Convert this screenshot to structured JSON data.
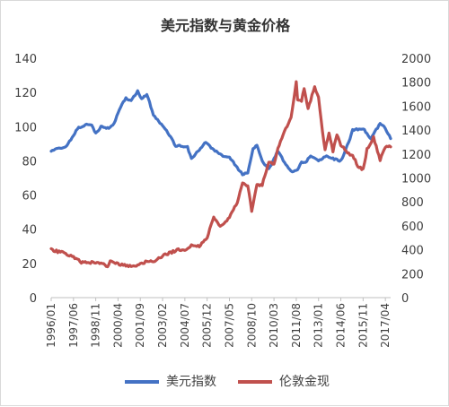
{
  "chart_data": {
    "type": "line",
    "title": "美元指数与黄金价格",
    "xlabel": "",
    "ylabel": "",
    "x_categories": [
      "1996/01",
      "1997/06",
      "1998/11",
      "2000/04",
      "2001/09",
      "2003/02",
      "2004/07",
      "2005/12",
      "2007/05",
      "2008/10",
      "2010/03",
      "2011/08",
      "2013/01",
      "2014/06",
      "2015/11",
      "2017/04"
    ],
    "x_range": [
      "1996/01",
      "2017/08"
    ],
    "y_left": {
      "min": 0,
      "max": 140,
      "ticks": [
        0,
        20,
        40,
        60,
        80,
        100,
        120,
        140
      ]
    },
    "y_right": {
      "min": 0,
      "max": 2000,
      "ticks": [
        0,
        200,
        400,
        600,
        800,
        1000,
        1200,
        1400,
        1600,
        1800,
        2000
      ]
    },
    "grid": false,
    "legend_position": "bottom",
    "series": [
      {
        "name": "美元指数",
        "axis": "left",
        "color": "#4472c4",
        "points": [
          [
            "1996/01",
            86
          ],
          [
            "1996/06",
            87
          ],
          [
            "1996/12",
            88
          ],
          [
            "1997/06",
            95
          ],
          [
            "1997/09",
            99
          ],
          [
            "1997/12",
            100
          ],
          [
            "1998/03",
            101
          ],
          [
            "1998/08",
            101
          ],
          [
            "1998/11",
            96
          ],
          [
            "1999/03",
            100
          ],
          [
            "1999/09",
            99
          ],
          [
            "2000/01",
            102
          ],
          [
            "2000/05",
            110
          ],
          [
            "2000/10",
            117
          ],
          [
            "2001/02",
            115
          ],
          [
            "2001/07",
            121
          ],
          [
            "2001/10",
            116
          ],
          [
            "2002/02",
            119
          ],
          [
            "2002/07",
            107
          ],
          [
            "2002/12",
            102
          ],
          [
            "2003/03",
            100
          ],
          [
            "2003/09",
            93
          ],
          [
            "2003/12",
            88
          ],
          [
            "2004/03",
            89
          ],
          [
            "2004/09",
            88
          ],
          [
            "2004/12",
            81
          ],
          [
            "2005/03",
            84
          ],
          [
            "2005/08",
            88
          ],
          [
            "2005/11",
            91
          ],
          [
            "2006/04",
            87
          ],
          [
            "2006/12",
            83
          ],
          [
            "2007/05",
            82
          ],
          [
            "2007/11",
            76
          ],
          [
            "2008/03",
            72
          ],
          [
            "2008/07",
            73
          ],
          [
            "2008/11",
            87
          ],
          [
            "2009/02",
            89
          ],
          [
            "2009/06",
            80
          ],
          [
            "2009/11",
            75
          ],
          [
            "2010/03",
            81
          ],
          [
            "2010/06",
            86
          ],
          [
            "2010/11",
            79
          ],
          [
            "2011/04",
            74
          ],
          [
            "2011/08",
            74
          ],
          [
            "2011/12",
            79
          ],
          [
            "2012/03",
            79
          ],
          [
            "2012/07",
            83
          ],
          [
            "2013/01",
            80
          ],
          [
            "2013/07",
            83
          ],
          [
            "2014/01",
            81
          ],
          [
            "2014/06",
            80
          ],
          [
            "2014/09",
            85
          ],
          [
            "2015/01",
            93
          ],
          [
            "2015/03",
            98
          ],
          [
            "2015/11",
            99
          ],
          [
            "2016/05",
            93
          ],
          [
            "2016/12",
            102
          ],
          [
            "2017/04",
            99
          ],
          [
            "2017/08",
            93
          ]
        ]
      },
      {
        "name": "伦敦金现",
        "axis": "right",
        "color": "#c0504d",
        "points": [
          [
            "1996/01",
            400
          ],
          [
            "1996/06",
            385
          ],
          [
            "1996/12",
            370
          ],
          [
            "1997/06",
            340
          ],
          [
            "1997/12",
            295
          ],
          [
            "1998/06",
            295
          ],
          [
            "1998/11",
            290
          ],
          [
            "1999/05",
            280
          ],
          [
            "1999/08",
            255
          ],
          [
            "1999/10",
            305
          ],
          [
            "2000/04",
            280
          ],
          [
            "2000/10",
            270
          ],
          [
            "2001/04",
            260
          ],
          [
            "2001/09",
            285
          ],
          [
            "2002/02",
            300
          ],
          [
            "2002/08",
            310
          ],
          [
            "2003/02",
            350
          ],
          [
            "2003/09",
            380
          ],
          [
            "2004/02",
            400
          ],
          [
            "2004/07",
            395
          ],
          [
            "2004/12",
            440
          ],
          [
            "2005/06",
            430
          ],
          [
            "2005/12",
            500
          ],
          [
            "2006/05",
            680
          ],
          [
            "2006/10",
            590
          ],
          [
            "2007/05",
            670
          ],
          [
            "2007/11",
            800
          ],
          [
            "2008/03",
            950
          ],
          [
            "2008/07",
            940
          ],
          [
            "2008/10",
            730
          ],
          [
            "2009/02",
            940
          ],
          [
            "2009/06",
            940
          ],
          [
            "2009/11",
            1140
          ],
          [
            "2010/03",
            1110
          ],
          [
            "2010/06",
            1240
          ],
          [
            "2010/11",
            1390
          ],
          [
            "2011/04",
            1500
          ],
          [
            "2011/08",
            1800
          ],
          [
            "2011/09",
            1650
          ],
          [
            "2011/12",
            1650
          ],
          [
            "2012/02",
            1740
          ],
          [
            "2012/05",
            1580
          ],
          [
            "2012/10",
            1760
          ],
          [
            "2013/01",
            1670
          ],
          [
            "2013/04",
            1390
          ],
          [
            "2013/06",
            1230
          ],
          [
            "2013/09",
            1380
          ],
          [
            "2013/12",
            1220
          ],
          [
            "2014/03",
            1360
          ],
          [
            "2014/06",
            1280
          ],
          [
            "2014/12",
            1200
          ],
          [
            "2015/03",
            1190
          ],
          [
            "2015/07",
            1100
          ],
          [
            "2015/11",
            1070
          ],
          [
            "2016/02",
            1240
          ],
          [
            "2016/07",
            1340
          ],
          [
            "2016/12",
            1150
          ],
          [
            "2017/04",
            1260
          ],
          [
            "2017/08",
            1260
          ]
        ]
      }
    ]
  }
}
